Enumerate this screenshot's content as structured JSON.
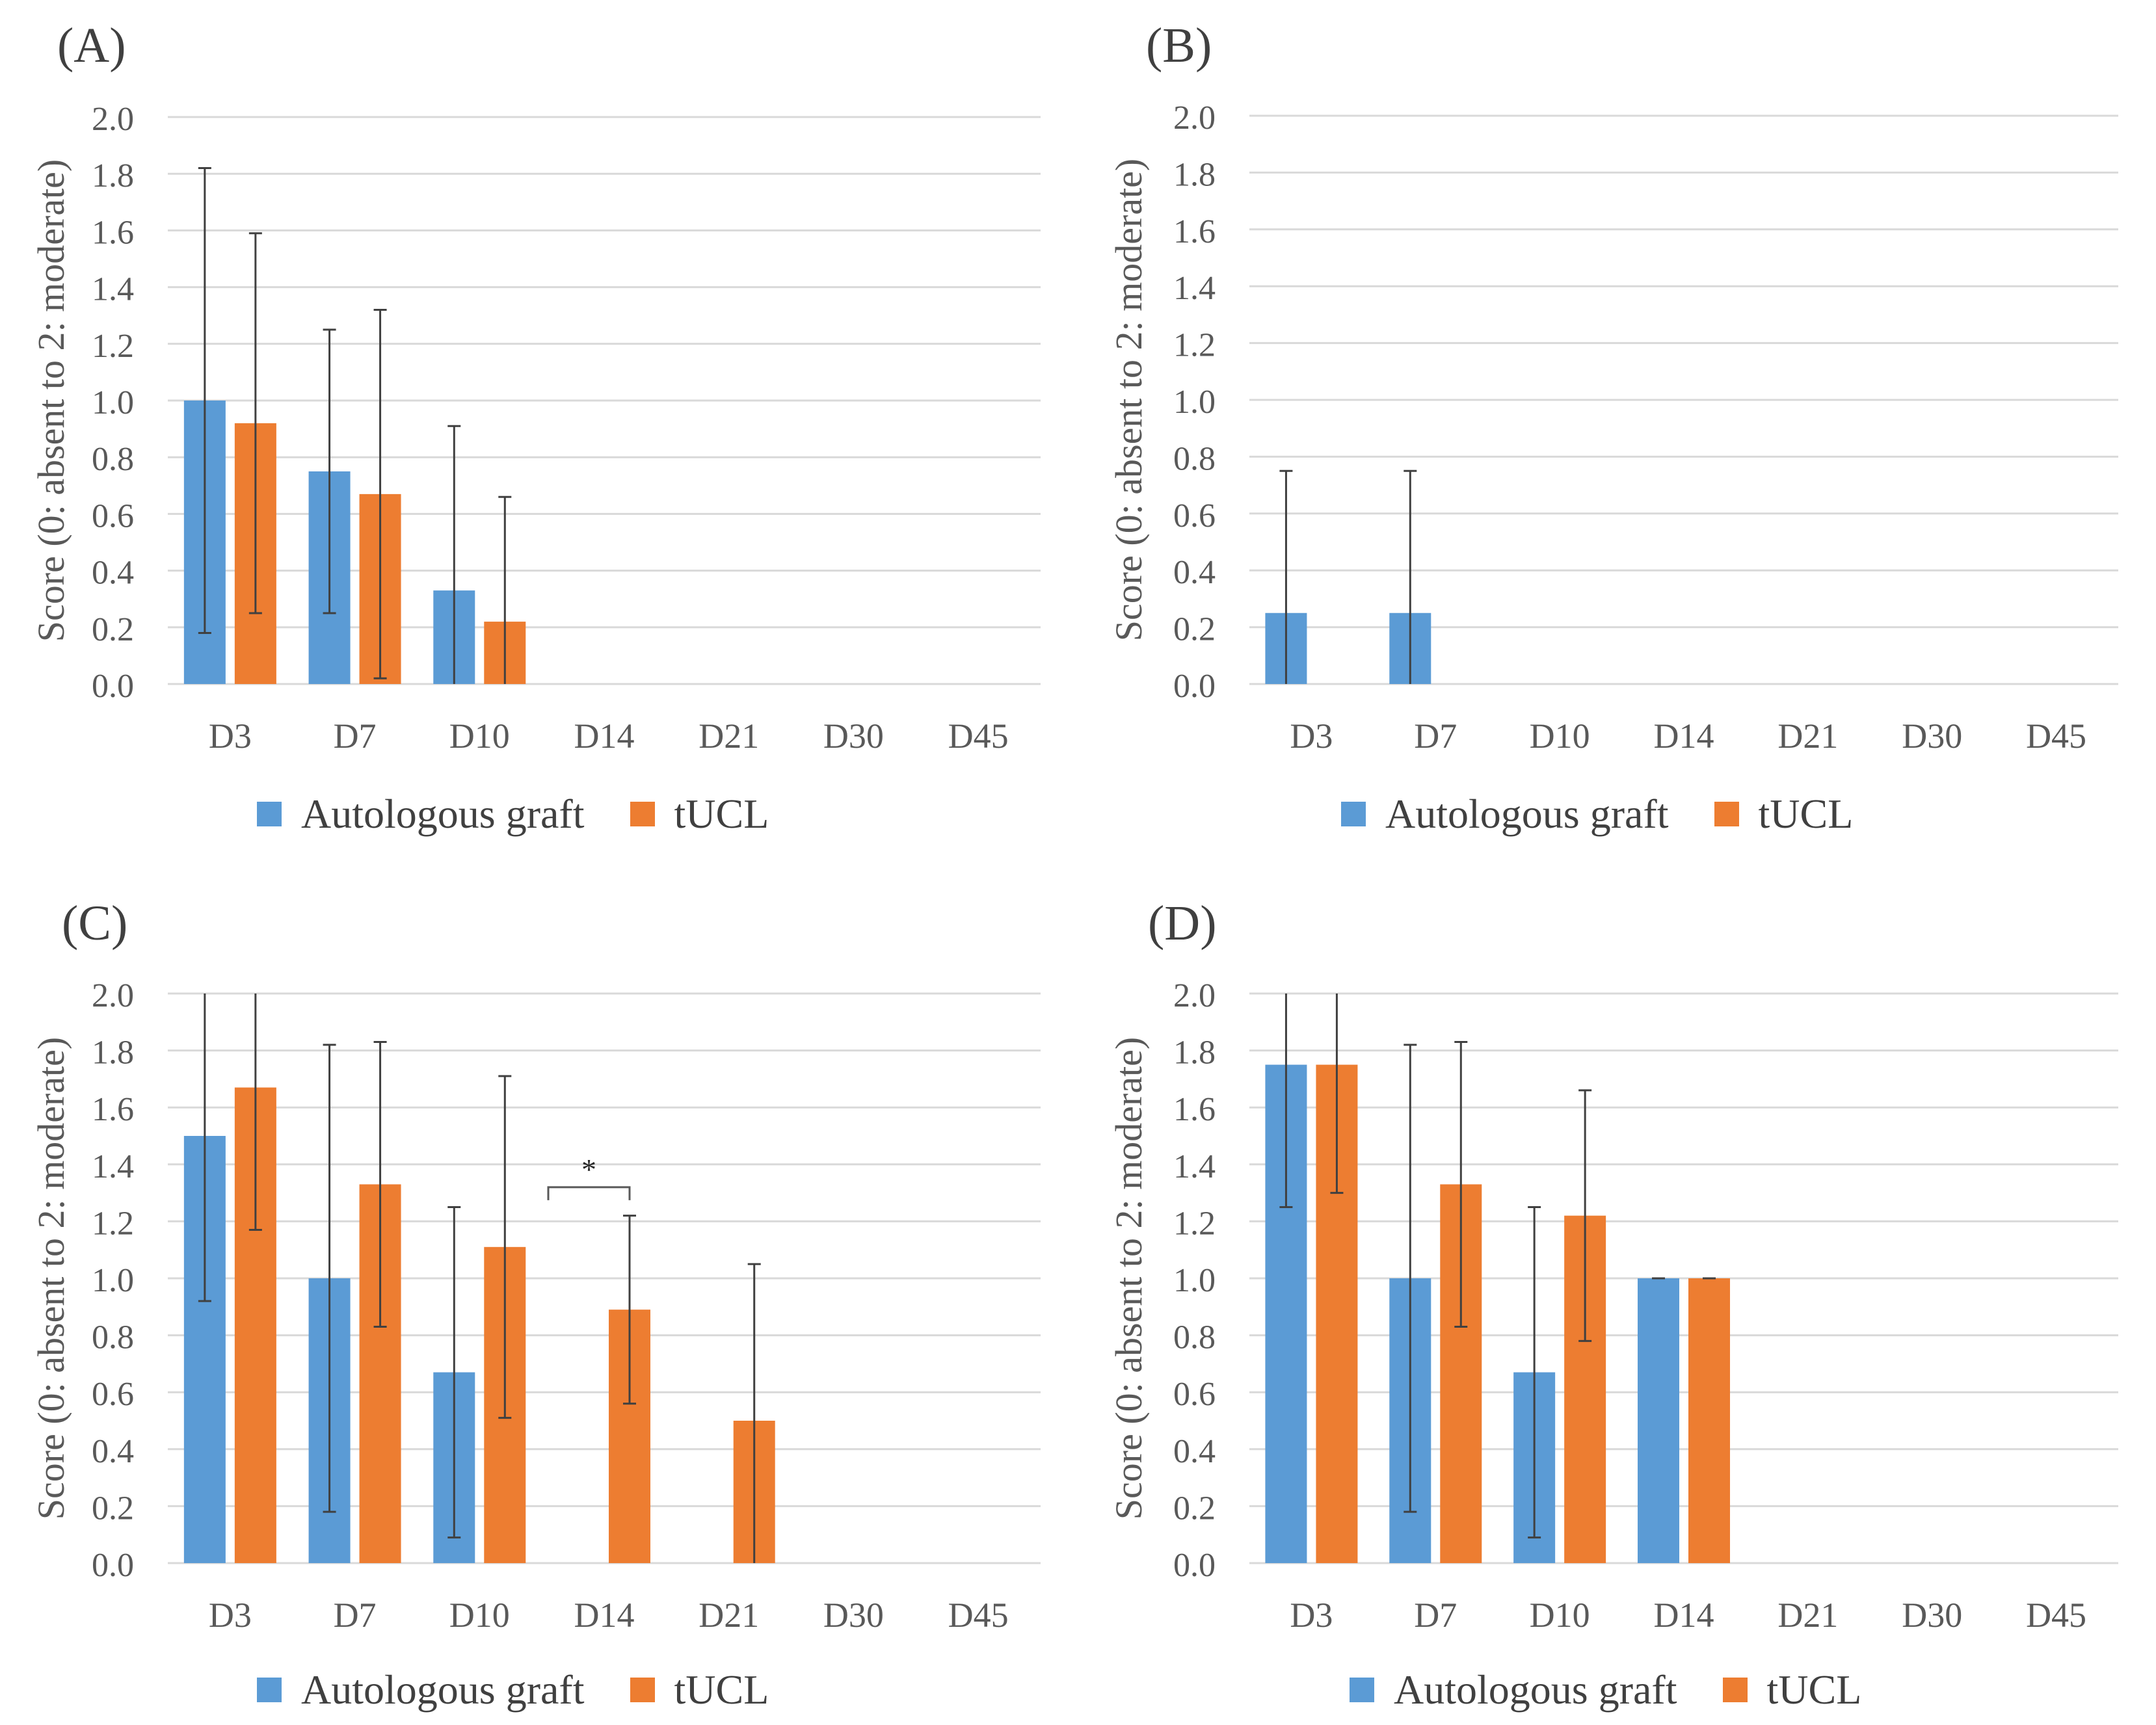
{
  "legend": {
    "series_a": "Autologous graft",
    "series_b": "tUCL"
  },
  "colors": {
    "autologous": "#5b9bd5",
    "tucl": "#ed7d31",
    "grid": "#d9d9d9",
    "text": "#595959",
    "error": "#404040"
  },
  "chart_data": [
    {
      "id": "A",
      "panel_label": "(A)",
      "type": "bar",
      "ylabel": "Score (0: absent to 2: moderate)",
      "ylim": [
        0,
        2.0
      ],
      "yticks": [
        "0.0",
        "0.2",
        "0.4",
        "0.6",
        "0.8",
        "1.0",
        "1.2",
        "1.4",
        "1.6",
        "1.8",
        "2.0"
      ],
      "categories": [
        "D3",
        "D7",
        "D10",
        "D14",
        "D21",
        "D30",
        "D45"
      ],
      "series": [
        {
          "name": "Autologous graft",
          "values": [
            1.0,
            0.75,
            0.33,
            0,
            0,
            0,
            0
          ],
          "error": [
            0.82,
            0.5,
            0.58,
            null,
            null,
            null,
            null
          ]
        },
        {
          "name": "tUCL",
          "values": [
            0.92,
            0.67,
            0.22,
            0,
            0,
            0,
            0
          ],
          "error": [
            0.67,
            0.65,
            0.44,
            null,
            null,
            null,
            null
          ]
        }
      ]
    },
    {
      "id": "B",
      "panel_label": "(B)",
      "type": "bar",
      "ylabel": "Score (0: absent to 2: moderate)",
      "ylim": [
        0,
        2.0
      ],
      "yticks": [
        "0.0",
        "0.2",
        "0.4",
        "0.6",
        "0.8",
        "1.0",
        "1.2",
        "1.4",
        "1.6",
        "1.8",
        "2.0"
      ],
      "categories": [
        "D3",
        "D7",
        "D10",
        "D14",
        "D21",
        "D30",
        "D45"
      ],
      "series": [
        {
          "name": "Autologous graft",
          "values": [
            0.25,
            0.25,
            0,
            0,
            0,
            0,
            0
          ],
          "error": [
            0.5,
            0.5,
            null,
            null,
            null,
            null,
            null
          ]
        },
        {
          "name": "tUCL",
          "values": [
            0,
            0,
            0,
            0,
            0,
            0,
            0
          ],
          "error": [
            null,
            null,
            null,
            null,
            null,
            null,
            null
          ]
        }
      ]
    },
    {
      "id": "C",
      "panel_label": "(C)",
      "type": "bar",
      "ylabel": "Score (0: absent to 2: moderate)",
      "ylim": [
        0,
        2.0
      ],
      "yticks": [
        "0.0",
        "0.2",
        "0.4",
        "0.6",
        "0.8",
        "1.0",
        "1.2",
        "1.4",
        "1.6",
        "1.8",
        "2.0"
      ],
      "categories": [
        "D3",
        "D7",
        "D10",
        "D14",
        "D21",
        "D30",
        "D45"
      ],
      "series": [
        {
          "name": "Autologous graft",
          "values": [
            1.5,
            1.0,
            0.67,
            0,
            0,
            0,
            0
          ],
          "error": [
            0.58,
            0.82,
            0.58,
            null,
            null,
            null,
            null
          ]
        },
        {
          "name": "tUCL",
          "values": [
            1.67,
            1.33,
            1.11,
            0.89,
            0.5,
            0,
            0
          ],
          "error": [
            0.5,
            0.5,
            0.6,
            0.33,
            0.55,
            null,
            null
          ]
        }
      ],
      "annotation": {
        "text": "*",
        "category_index": 3
      }
    },
    {
      "id": "D",
      "panel_label": "(D)",
      "type": "bar",
      "ylabel": "Score (0: absent to 2: moderate)",
      "ylim": [
        0,
        2.0
      ],
      "yticks": [
        "0.0",
        "0.2",
        "0.4",
        "0.6",
        "0.8",
        "1.0",
        "1.2",
        "1.4",
        "1.6",
        "1.8",
        "2.0"
      ],
      "categories": [
        "D3",
        "D7",
        "D10",
        "D14",
        "D21",
        "D30",
        "D45"
      ],
      "series": [
        {
          "name": "Autologous graft",
          "values": [
            1.75,
            1.0,
            0.67,
            1.0,
            0,
            0,
            0
          ],
          "error": [
            0.5,
            0.82,
            0.58,
            0,
            null,
            null,
            null
          ]
        },
        {
          "name": "tUCL",
          "values": [
            1.75,
            1.33,
            1.22,
            1.0,
            0,
            0,
            0
          ],
          "error": [
            0.45,
            0.5,
            0.44,
            0,
            null,
            null,
            null
          ]
        }
      ]
    }
  ]
}
